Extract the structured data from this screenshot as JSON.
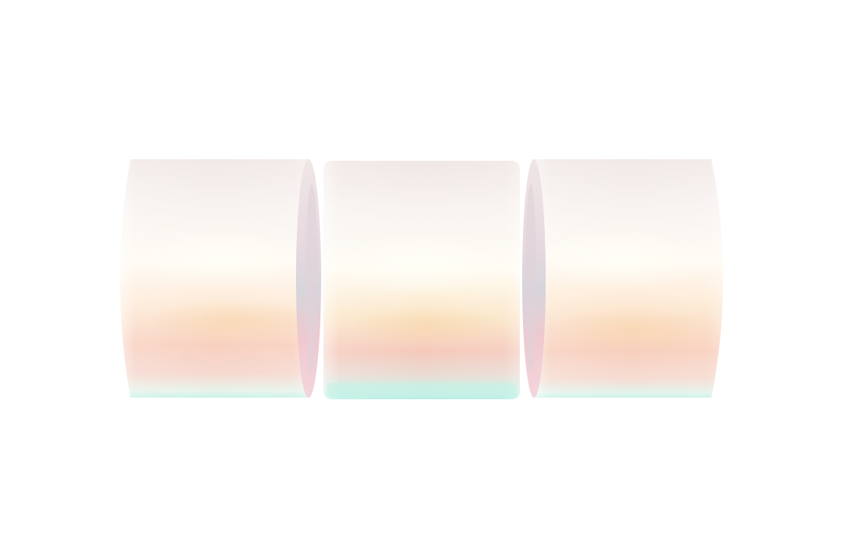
{
  "scene": {
    "background": "#ffffff",
    "object": "three-segment-iridescent-cylinder",
    "segment_count": 3,
    "segments": [
      {
        "name": "left",
        "end_cap_side": "right"
      },
      {
        "name": "middle",
        "end_cap_side": "none"
      },
      {
        "name": "right",
        "end_cap_side": "left"
      }
    ],
    "palette": {
      "top": "#f3ece9",
      "highlight": "#fffaf0",
      "warm_band": "#f9dcc6",
      "pink_band": "#f3c3bc",
      "bottom_edge": "#c8f4ea",
      "cap_tint": "#f4cfd6",
      "cap_gray": "#d9d8dc"
    }
  }
}
